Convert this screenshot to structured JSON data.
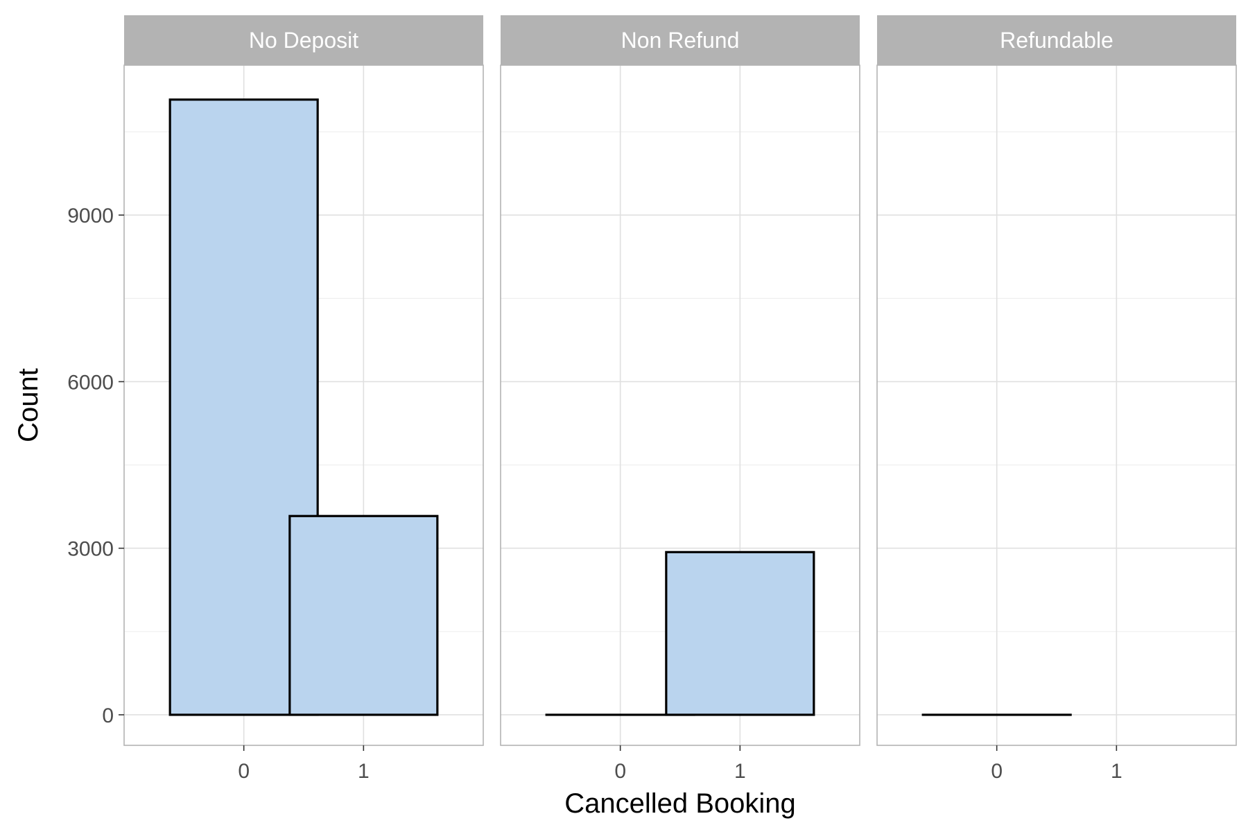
{
  "chart_data": {
    "type": "bar",
    "facet_by": "deposit_type",
    "xlabel": "Cancelled Booking",
    "ylabel": "Count",
    "categories": [
      "0",
      "1"
    ],
    "y_ticks": [
      0,
      3000,
      6000,
      9000
    ],
    "ylim": [
      -550,
      11700
    ],
    "grid": true,
    "panels": [
      {
        "name": "No Deposit",
        "values": [
          11080,
          3580
        ]
      },
      {
        "name": "Non Refund",
        "values": [
          0,
          2930
        ]
      },
      {
        "name": "Refundable",
        "values": [
          0,
          null
        ]
      }
    ],
    "colors": {
      "bar_fill": "#bad4ee",
      "bar_outline": "#000000",
      "strip_fill": "#b3b3b3",
      "strip_text": "#ffffff",
      "grid_major": "#e0e0e0",
      "grid_minor": "#efefef",
      "panel_border": "#b3b3b3"
    }
  }
}
